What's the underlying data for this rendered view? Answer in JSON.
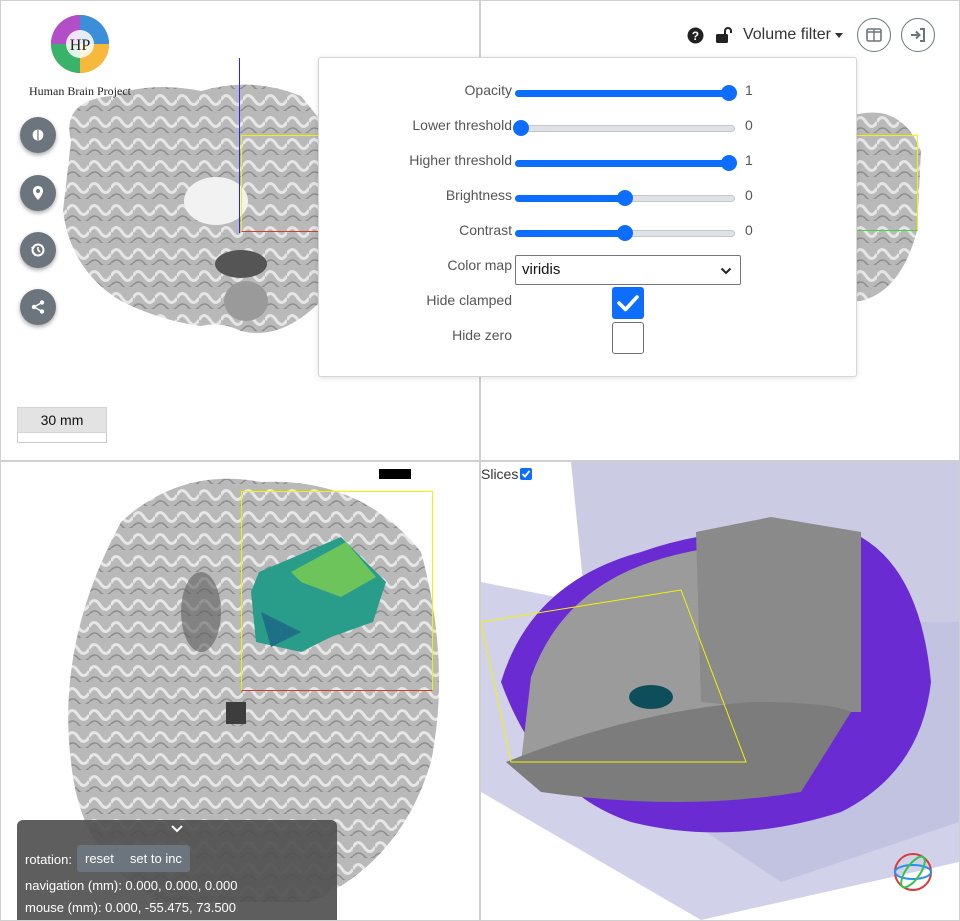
{
  "logo": {
    "text": "Human Brain Project"
  },
  "scale": {
    "label": "30 mm"
  },
  "toolbar": {
    "volume_filter": "Volume filter"
  },
  "filter": {
    "opacity": {
      "label": "Opacity",
      "value": "1",
      "fraction": 1.0
    },
    "lower": {
      "label": "Lower threshold",
      "value": "0",
      "fraction": 0.0
    },
    "higher": {
      "label": "Higher threshold",
      "value": "1",
      "fraction": 1.0
    },
    "brightness": {
      "label": "Brightness",
      "value": "0",
      "fraction": 0.5
    },
    "contrast": {
      "label": "Contrast",
      "value": "0",
      "fraction": 0.5
    },
    "colormap": {
      "label": "Color map",
      "value": "viridis"
    },
    "hide_clamped": {
      "label": "Hide clamped",
      "checked": true
    },
    "hide_zero": {
      "label": "Hide zero",
      "checked": false
    }
  },
  "view3d": {
    "slices_label": "Slices"
  },
  "status": {
    "rotation_label": "rotation:",
    "reset": "reset",
    "set_to_inc": "set to inc",
    "navigation": "navigation (mm): 0.000, 0.000, 0.000",
    "mouse": "mouse (mm): 0.000, -55.475, 73.500"
  },
  "colors": {
    "accent": "#0d6efd",
    "crosshair": "#2323ff",
    "bbox": "#f3f300",
    "surface": "#7b2fd6",
    "fab": "#6c757d"
  }
}
